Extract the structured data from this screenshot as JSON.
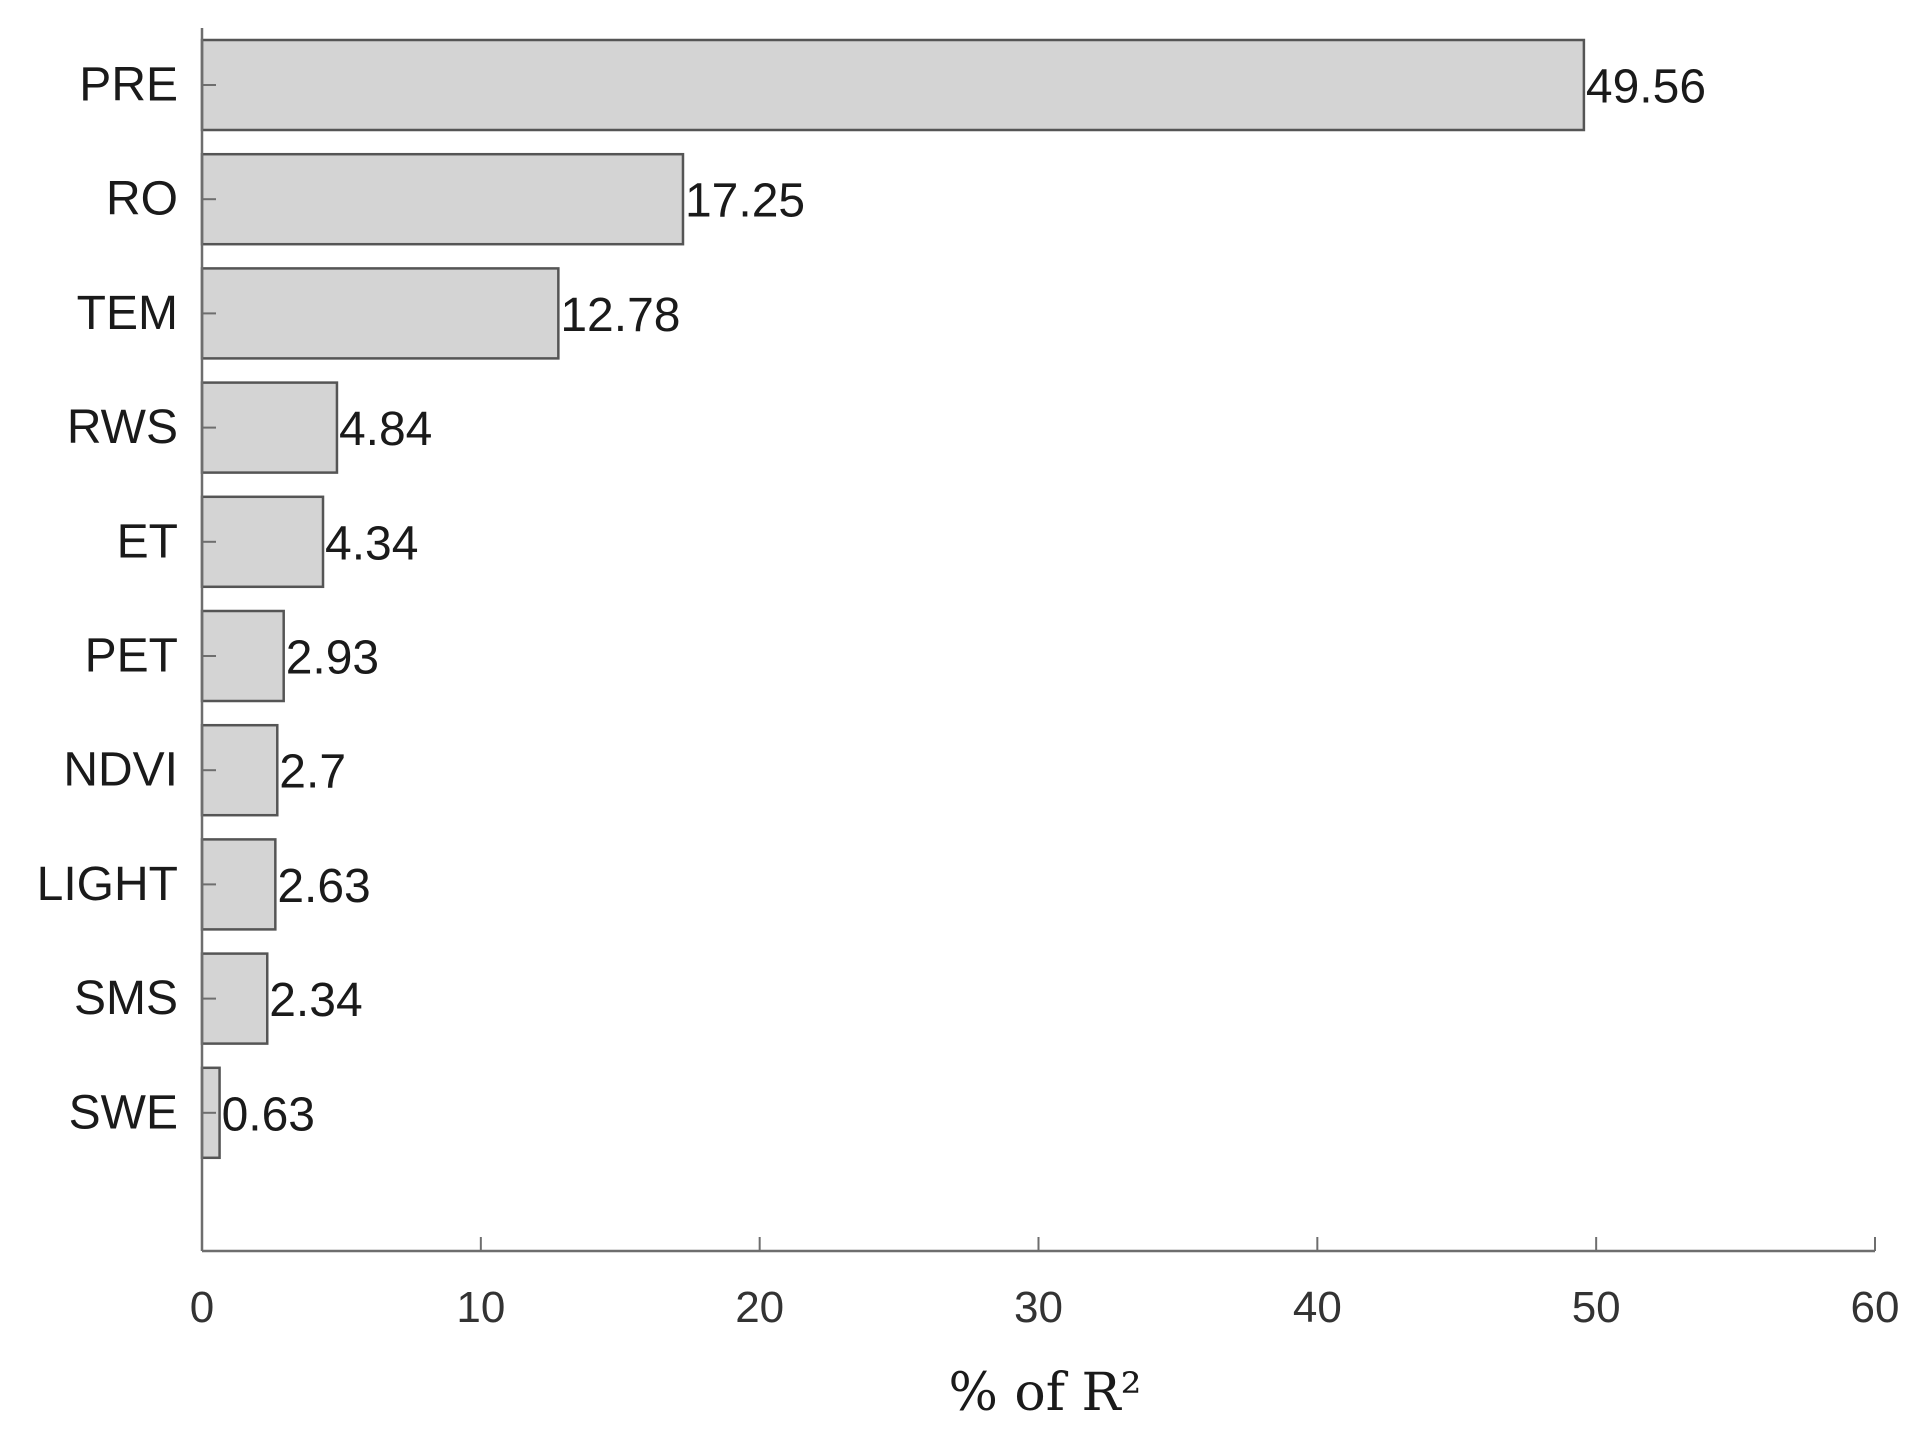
{
  "chart_data": {
    "type": "bar",
    "orientation": "horizontal",
    "categories": [
      "PRE",
      "RO",
      "TEM",
      "RWS",
      "ET",
      "PET",
      "NDVI",
      "LIGHT",
      "SMS",
      "SWE"
    ],
    "values": [
      49.56,
      17.25,
      12.78,
      4.84,
      4.34,
      2.93,
      2.7,
      2.63,
      2.34,
      0.63
    ],
    "value_labels": [
      "49.56",
      "17.25",
      "12.78",
      "4.84",
      "4.34",
      "2.93",
      "2.7",
      "2.63",
      "2.34",
      "0.63"
    ],
    "xlabel": "% of R²",
    "ylabel": "",
    "title": "",
    "xlim": [
      0,
      60
    ],
    "xticks": [
      0,
      10,
      20,
      30,
      40,
      50,
      60
    ],
    "xtick_labels": [
      "0",
      "10",
      "20",
      "30",
      "40",
      "50",
      "60"
    ],
    "grid": false,
    "legend": "none",
    "colors": {
      "bar_fill": "#d4d4d4",
      "bar_stroke": "#555555",
      "axis": "#6e6e6e",
      "text": "#1a1a1a"
    }
  }
}
